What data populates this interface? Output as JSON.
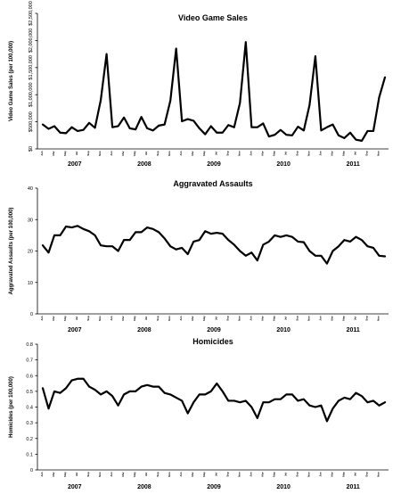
{
  "chart_data": [
    {
      "type": "line",
      "title": "Video Game Sales",
      "ylabel": "Video Game Sales (per 100,000)",
      "ylim": [
        0,
        2500000
      ],
      "yticks": [
        0,
        500000,
        1000000,
        1500000,
        2000000,
        2500000
      ],
      "ytick_labels": [
        "$0",
        "$500,000",
        "$1,000,000",
        "$1,500,000",
        "$2,000,000",
        "$2,500,000"
      ],
      "month_labels": [
        "Jan",
        "Feb",
        "Mar",
        "Apr",
        "May",
        "Jun",
        "Jul",
        "Aug",
        "Sep",
        "Oct",
        "Nov",
        "Dec"
      ],
      "year_labels": [
        "2007",
        "2008",
        "2009",
        "2010",
        "2011"
      ],
      "grid": false,
      "values": [
        450000,
        370000,
        420000,
        300000,
        290000,
        400000,
        330000,
        350000,
        480000,
        390000,
        900000,
        1750000,
        400000,
        420000,
        580000,
        380000,
        360000,
        590000,
        380000,
        340000,
        430000,
        450000,
        890000,
        1850000,
        510000,
        550000,
        520000,
        380000,
        270000,
        420000,
        300000,
        300000,
        440000,
        400000,
        850000,
        1970000,
        400000,
        400000,
        470000,
        230000,
        260000,
        350000,
        260000,
        250000,
        410000,
        340000,
        810000,
        1710000,
        340000,
        400000,
        450000,
        250000,
        200000,
        300000,
        170000,
        150000,
        330000,
        330000,
        950000,
        1320000
      ]
    },
    {
      "type": "line",
      "title": "Aggravated Assaults",
      "ylabel": "Aggravated Assaults (per 100,000)",
      "ylim": [
        0,
        40
      ],
      "yticks": [
        0,
        10,
        20,
        30,
        40
      ],
      "ytick_labels": [
        "0",
        "10",
        "20",
        "30",
        "40"
      ],
      "month_labels": [
        "Jan",
        "Feb",
        "Mar",
        "Apr",
        "May",
        "Jun",
        "Jul",
        "Aug",
        "Sep",
        "Oct",
        "Nov",
        "Dec"
      ],
      "year_labels": [
        "2007",
        "2008",
        "2009",
        "2010",
        "2011"
      ],
      "grid": false,
      "values": [
        21.8,
        19.5,
        25,
        25,
        27.8,
        27.5,
        28,
        27,
        26.3,
        25,
        21.8,
        21.5,
        21.5,
        20,
        23.5,
        23.5,
        26,
        26,
        27.5,
        27,
        26,
        24,
        21.5,
        20.5,
        21,
        19,
        23,
        23.5,
        26.3,
        25.5,
        25.8,
        25.5,
        23.5,
        22,
        20,
        18.5,
        19.5,
        17,
        22,
        23,
        25,
        24.5,
        25,
        24.5,
        23,
        22.8,
        20,
        18.5,
        18.5,
        16,
        20,
        21.5,
        23.5,
        23,
        24.5,
        23.5,
        21.5,
        21,
        18.5,
        18.3
      ]
    },
    {
      "type": "line",
      "title": "Homicides",
      "ylabel": "Homicides (per 100,000)",
      "ylim": [
        0,
        0.8
      ],
      "yticks": [
        0,
        0.1,
        0.2,
        0.3,
        0.4,
        0.5,
        0.6,
        0.7,
        0.8
      ],
      "ytick_labels": [
        "0",
        "0.1",
        "0.2",
        "0.3",
        "0.4",
        "0.5",
        "0.6",
        "0.7",
        "0.8"
      ],
      "month_labels": [
        "Jan",
        "Feb",
        "Mar",
        "Apr",
        "May",
        "Jun",
        "Jul",
        "Aug",
        "Sep",
        "Oct",
        "Nov",
        "Dec"
      ],
      "year_labels": [
        "2007",
        "2008",
        "2009",
        "2010",
        "2011"
      ],
      "grid": false,
      "values": [
        0.52,
        0.39,
        0.5,
        0.49,
        0.52,
        0.57,
        0.58,
        0.58,
        0.53,
        0.51,
        0.48,
        0.5,
        0.47,
        0.41,
        0.48,
        0.5,
        0.5,
        0.53,
        0.54,
        0.53,
        0.53,
        0.49,
        0.48,
        0.46,
        0.44,
        0.36,
        0.43,
        0.48,
        0.48,
        0.5,
        0.55,
        0.5,
        0.44,
        0.44,
        0.43,
        0.44,
        0.4,
        0.33,
        0.43,
        0.43,
        0.45,
        0.45,
        0.48,
        0.48,
        0.44,
        0.45,
        0.41,
        0.4,
        0.41,
        0.31,
        0.39,
        0.44,
        0.46,
        0.45,
        0.49,
        0.47,
        0.43,
        0.44,
        0.41,
        0.43
      ]
    }
  ]
}
